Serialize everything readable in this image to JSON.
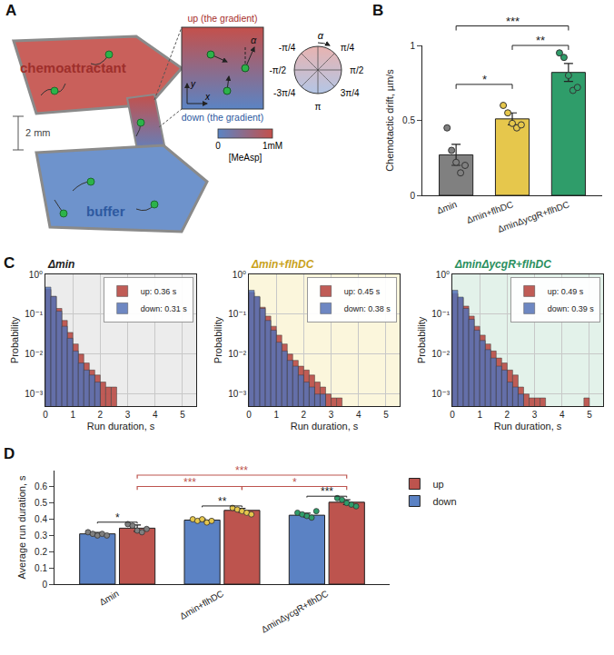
{
  "diagram": {
    "panel": "A",
    "top_region": "chemoattractant",
    "bottom_region": "buffer",
    "height_label": "2 mm",
    "up_label": "up (the gradient)",
    "down_label": "down (the gradient)",
    "angle_symbol": "α",
    "x_axis": "x",
    "y_axis": "y",
    "colorbar": {
      "label": "[MeAsp]",
      "min": "0",
      "max": "1mM"
    },
    "compass": {
      "labels": [
        "-π/4",
        "π/4",
        "-π/2",
        "π/2",
        "-3π/4",
        "3π/4",
        "π"
      ],
      "arrow_label": "α"
    }
  },
  "chart_data": [
    {
      "panel": "B",
      "type": "bar",
      "categories": [
        "Δmin",
        "Δmin+flhDC",
        "ΔminΔycgR+flhDC"
      ],
      "values": [
        0.27,
        0.51,
        0.82
      ],
      "errors": [
        0.07,
        0.04,
        0.06
      ],
      "points": [
        [
          0.45,
          0.3,
          0.22,
          0.15,
          0.2
        ],
        [
          0.6,
          0.55,
          0.48,
          0.45,
          0.47
        ],
        [
          0.95,
          0.92,
          0.8,
          0.7,
          0.72
        ]
      ],
      "colors": [
        "#808080",
        "#e6c74c",
        "#2f9d6a"
      ],
      "ylabel": "Chemotactic drift, µm/s",
      "ylim": [
        0,
        1
      ],
      "yticks": [
        0,
        0.5,
        1
      ],
      "grid": false,
      "significance": [
        {
          "from": 0,
          "to": 1,
          "label": "*"
        },
        {
          "from": 1,
          "to": 2,
          "label": "**"
        },
        {
          "from": 0,
          "to": 2,
          "label": "***"
        }
      ]
    },
    {
      "panel": "C",
      "type": "histogram",
      "title": "Δmin",
      "xlabel": "Run duration, s",
      "ylabel": "Probability",
      "bins": [
        0,
        0.2,
        0.4,
        0.6,
        0.8,
        1,
        1.2,
        1.4,
        1.6,
        1.8,
        2,
        2.2,
        2.4,
        2.6,
        2.8,
        3,
        3.2,
        3.4,
        3.6,
        3.8,
        4,
        4.2,
        4.4,
        4.6,
        4.8,
        5,
        5.2
      ],
      "series": [
        {
          "name": "up: 0.36 s",
          "color": "#bd544e",
          "values": [
            0.42,
            0.28,
            0.14,
            0.07,
            0.035,
            0.018,
            0.01,
            0.006,
            0.004,
            0.003,
            0.002,
            0.0015,
            0.0015,
            null,
            null,
            null,
            null,
            null,
            null,
            null,
            null,
            null,
            null,
            null,
            null,
            null
          ]
        },
        {
          "name": "down: 0.31 s",
          "color": "#5573b8",
          "values": [
            0.48,
            0.28,
            0.12,
            0.05,
            0.025,
            0.012,
            0.006,
            0.004,
            0.003,
            0.002,
            null,
            null,
            null,
            null,
            null,
            null,
            null,
            null,
            null,
            null,
            null,
            null,
            null,
            null,
            null,
            null
          ]
        }
      ],
      "xlim": [
        0,
        5.5
      ],
      "xticks": [
        0,
        1,
        2,
        3,
        4,
        5
      ],
      "log": "y",
      "ylim": [
        0.0005,
        1
      ],
      "yticks": [
        {
          "value": 0.001,
          "label": "10⁻³"
        },
        {
          "value": 0.01,
          "label": "10⁻²"
        },
        {
          "value": 0.1,
          "label": "10⁻¹"
        },
        {
          "value": 1,
          "label": "10⁰"
        }
      ],
      "grid": true,
      "legend": "top-right"
    },
    {
      "type": "histogram",
      "title": "Δmin+flhDC",
      "xlabel": "Run duration, s",
      "ylabel": "Probability",
      "bins": [
        0,
        0.2,
        0.4,
        0.6,
        0.8,
        1,
        1.2,
        1.4,
        1.6,
        1.8,
        2,
        2.2,
        2.4,
        2.6,
        2.8,
        3,
        3.2,
        3.4,
        3.6,
        3.8,
        4,
        4.2,
        4.4,
        4.6,
        4.8,
        5,
        5.2
      ],
      "series": [
        {
          "name": "up: 0.45 s",
          "color": "#bd544e",
          "values": [
            0.35,
            0.27,
            0.15,
            0.09,
            0.05,
            0.03,
            0.018,
            0.01,
            0.007,
            0.005,
            0.004,
            0.003,
            0.002,
            0.0015,
            0.001,
            0.0008,
            0.0008,
            null,
            null,
            null,
            null,
            null,
            null,
            null,
            null,
            null
          ]
        },
        {
          "name": "down: 0.38 s",
          "color": "#5573b8",
          "values": [
            0.4,
            0.28,
            0.14,
            0.07,
            0.04,
            0.02,
            0.012,
            0.007,
            0.005,
            0.003,
            0.002,
            0.0015,
            0.001,
            0.001,
            null,
            null,
            null,
            null,
            null,
            null,
            null,
            null,
            null,
            null,
            null,
            null
          ]
        }
      ],
      "xlim": [
        0,
        5.5
      ],
      "xticks": [
        0,
        1,
        2,
        3,
        4,
        5
      ],
      "log": "y",
      "ylim": [
        0.0005,
        1
      ],
      "yticks": [
        {
          "value": 0.001,
          "label": "10⁻³"
        },
        {
          "value": 0.01,
          "label": "10⁻²"
        },
        {
          "value": 0.1,
          "label": "10⁻¹"
        },
        {
          "value": 1,
          "label": "10⁰"
        }
      ],
      "grid": true,
      "legend": "top-right"
    },
    {
      "type": "histogram",
      "title": "ΔminΔycgR+flhDC",
      "xlabel": "Run duration, s",
      "ylabel": "Probability",
      "bins": [
        0,
        0.2,
        0.4,
        0.6,
        0.8,
        1,
        1.2,
        1.4,
        1.6,
        1.8,
        2,
        2.2,
        2.4,
        2.6,
        2.8,
        3,
        3.2,
        3.4,
        3.6,
        3.8,
        4,
        4.2,
        4.4,
        4.6,
        4.8,
        5,
        5.2
      ],
      "series": [
        {
          "name": "up: 0.49 s",
          "color": "#bd544e",
          "values": [
            0.33,
            0.26,
            0.16,
            0.09,
            0.05,
            0.03,
            0.018,
            0.012,
            0.008,
            0.006,
            0.004,
            0.003,
            0.0015,
            0.001,
            0.0008,
            0.0008,
            0.0008,
            null,
            null,
            null,
            null,
            null,
            null,
            null,
            0.0008,
            null
          ]
        },
        {
          "name": "down: 0.39 s",
          "color": "#5573b8",
          "values": [
            0.4,
            0.27,
            0.14,
            0.075,
            0.04,
            0.022,
            0.013,
            0.008,
            0.005,
            0.004,
            0.002,
            0.0015,
            0.001,
            null,
            null,
            null,
            null,
            null,
            null,
            null,
            null,
            null,
            null,
            null,
            null,
            null
          ]
        }
      ],
      "xlim": [
        0,
        5.5
      ],
      "xticks": [
        0,
        1,
        2,
        3,
        4,
        5
      ],
      "log": "y",
      "ylim": [
        0.0005,
        1
      ],
      "yticks": [
        {
          "value": 0.001,
          "label": "10⁻³"
        },
        {
          "value": 0.01,
          "label": "10⁻²"
        },
        {
          "value": 0.1,
          "label": "10⁻¹"
        },
        {
          "value": 1,
          "label": "10⁰"
        }
      ],
      "grid": true,
      "legend": "top-right"
    },
    {
      "panel": "D",
      "type": "bar",
      "categories": [
        "Δmin",
        "Δmin+flhDC",
        "ΔminΔycgR+flhDC"
      ],
      "series": [
        {
          "name": "down",
          "color": "#5b82c4",
          "values": [
            0.31,
            0.395,
            0.425
          ],
          "errors": [
            0.008,
            0.008,
            0.012
          ],
          "points": [
            [
              0.32,
              0.31,
              0.3,
              0.31,
              0.3
            ],
            [
              0.4,
              0.39,
              0.4,
              0.38,
              0.39
            ],
            [
              0.44,
              0.43,
              0.42,
              0.41,
              0.45
            ]
          ]
        },
        {
          "name": "up",
          "color": "#bd544e",
          "values": [
            0.345,
            0.455,
            0.505
          ],
          "errors": [
            0.02,
            0.012,
            0.015
          ],
          "points": [
            [
              0.37,
              0.36,
              0.33,
              0.32,
              0.34
            ],
            [
              0.47,
              0.46,
              0.45,
              0.44,
              0.43
            ],
            [
              0.53,
              0.52,
              0.5,
              0.49,
              0.48
            ]
          ]
        }
      ],
      "ylabel": "Average run duration, s",
      "ylim": [
        0,
        0.7
      ],
      "yticks": [
        0,
        0.1,
        0.2,
        0.3,
        0.4,
        0.5,
        0.6
      ],
      "grid": false,
      "legend": "right",
      "significance": [
        {
          "category": 0,
          "label": "*"
        },
        {
          "category": 1,
          "label": "**"
        },
        {
          "category": 2,
          "label": "***"
        },
        {
          "from": 0,
          "to": 1,
          "series": "up",
          "label": "***"
        },
        {
          "from": 1,
          "to": 2,
          "series": "up",
          "label": "*"
        },
        {
          "from": 0,
          "to": 2,
          "series": "up",
          "label": "***"
        }
      ]
    }
  ]
}
